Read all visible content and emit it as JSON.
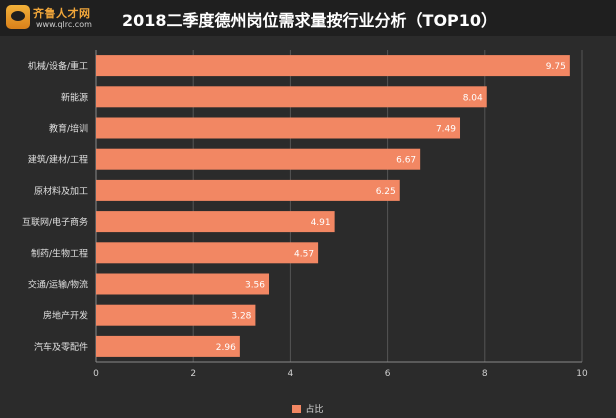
{
  "header": {
    "logo_name": "齐鲁人才网",
    "logo_url": "www.qlrc.com",
    "title": "2018二季度德州岗位需求量按行业分析（TOP10）"
  },
  "chart_data": {
    "type": "bar",
    "orientation": "horizontal",
    "categories": [
      "机械/设备/重工",
      "新能源",
      "教育/培训",
      "建筑/建材/工程",
      "原材料及加工",
      "互联网/电子商务",
      "制药/生物工程",
      "交通/运输/物流",
      "房地产开发",
      "汽车及零配件"
    ],
    "series": [
      {
        "name": "占比",
        "values": [
          9.75,
          8.04,
          7.49,
          6.67,
          6.25,
          4.91,
          4.57,
          3.56,
          3.28,
          2.96
        ]
      }
    ],
    "value_labels": [
      "9.75",
      "8.04",
      "7.49",
      "6.67",
      "6.25",
      "4.91",
      "4.57",
      "3.56",
      "3.28",
      "2.96"
    ],
    "xlim": [
      0,
      10
    ],
    "x_ticks": [
      0,
      2,
      4,
      6,
      8,
      10
    ],
    "grid": "vertical",
    "legend": "bottom-center",
    "bar_color": "#f28763"
  }
}
